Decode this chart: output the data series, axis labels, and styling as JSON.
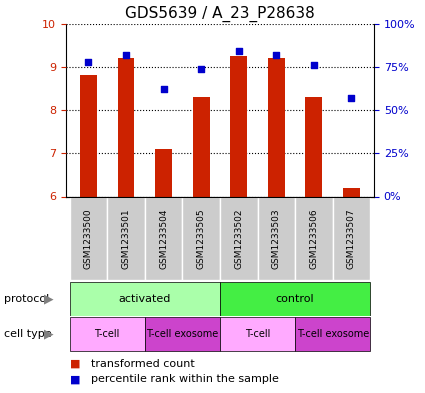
{
  "title": "GDS5639 / A_23_P28638",
  "samples": [
    "GSM1233500",
    "GSM1233501",
    "GSM1233504",
    "GSM1233505",
    "GSM1233502",
    "GSM1233503",
    "GSM1233506",
    "GSM1233507"
  ],
  "transformed_count": [
    8.8,
    9.2,
    7.1,
    8.3,
    9.25,
    9.2,
    8.3,
    6.2
  ],
  "percentile_rank": [
    78,
    82,
    62,
    74,
    84,
    82,
    76,
    57
  ],
  "ylim_left": [
    6,
    10
  ],
  "ylim_right": [
    0,
    100
  ],
  "yticks_left": [
    6,
    7,
    8,
    9,
    10
  ],
  "yticks_right": [
    0,
    25,
    50,
    75,
    100
  ],
  "ytick_labels_right": [
    "0%",
    "25%",
    "50%",
    "75%",
    "100%"
  ],
  "bar_color": "#cc2200",
  "dot_color": "#0000cc",
  "bar_width": 0.45,
  "protocol_groups": [
    {
      "label": "activated",
      "span": [
        0,
        4
      ],
      "color": "#aaffaa"
    },
    {
      "label": "control",
      "span": [
        4,
        8
      ],
      "color": "#44ee44"
    }
  ],
  "cell_type_groups": [
    {
      "label": "T-cell",
      "span": [
        0,
        2
      ],
      "color": "#ffaaff"
    },
    {
      "label": "T-cell exosome",
      "span": [
        2,
        4
      ],
      "color": "#cc44cc"
    },
    {
      "label": "T-cell",
      "span": [
        4,
        6
      ],
      "color": "#ffaaff"
    },
    {
      "label": "T-cell exosome",
      "span": [
        6,
        8
      ],
      "color": "#cc44cc"
    }
  ],
  "legend_items": [
    {
      "label": "transformed count",
      "color": "#cc2200"
    },
    {
      "label": "percentile rank within the sample",
      "color": "#0000cc"
    }
  ],
  "bar_color_red": "#cc2200",
  "dot_color_blue": "#0000cc",
  "sample_box_color": "#cccccc",
  "title_fontsize": 11,
  "tick_fontsize": 8,
  "sample_fontsize": 6.5,
  "protocol_fontsize": 8,
  "celltype_fontsize": 7,
  "legend_fontsize": 8,
  "row_label_fontsize": 8
}
